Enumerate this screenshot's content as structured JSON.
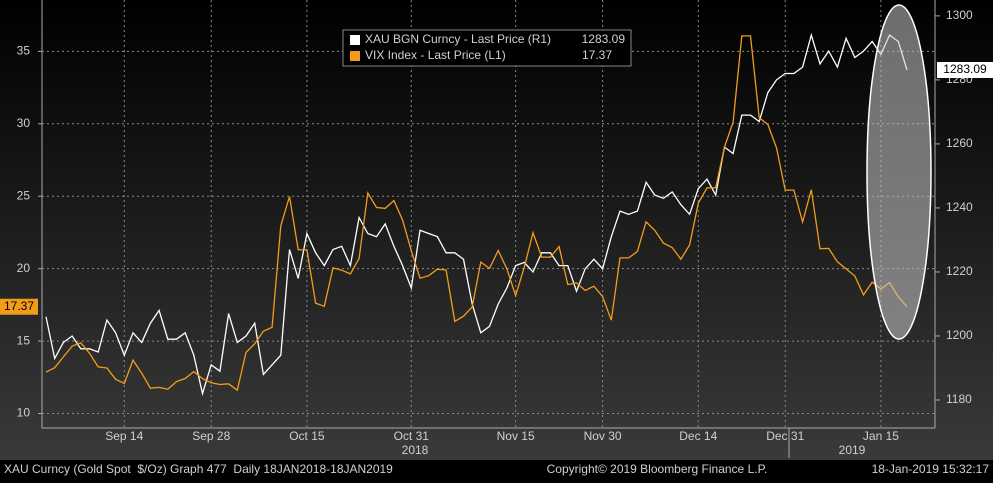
{
  "chart_data": {
    "type": "line",
    "categories": [
      null,
      null,
      null,
      null,
      null,
      null,
      null,
      null,
      null,
      "Sep 14",
      null,
      null,
      null,
      null,
      null,
      null,
      null,
      null,
      null,
      "Sep 28",
      null,
      null,
      null,
      null,
      null,
      null,
      null,
      null,
      null,
      null,
      "Oct 15",
      null,
      null,
      null,
      null,
      null,
      null,
      null,
      null,
      null,
      null,
      null,
      "Oct 31",
      null,
      null,
      null,
      null,
      null,
      null,
      null,
      null,
      null,
      null,
      null,
      "Nov 15",
      null,
      null,
      null,
      null,
      null,
      null,
      null,
      null,
      null,
      "Nov 30",
      null,
      null,
      null,
      null,
      null,
      null,
      null,
      null,
      null,
      null,
      "Dec 14",
      null,
      null,
      null,
      null,
      null,
      null,
      null,
      null,
      null,
      "Dec 31",
      null,
      null,
      null,
      null,
      null,
      null,
      null,
      null,
      null,
      null,
      "Jan 15",
      null,
      null,
      null
    ],
    "years": [
      "2018",
      "2019"
    ],
    "series": [
      {
        "name": "XAU BGN Curncy - Last Price (R1)",
        "color": "#ffffff",
        "axis": "y2",
        "values": [
          1206,
          1193,
          1198,
          1200,
          1196,
          1196,
          1195,
          1205,
          1201,
          1194,
          1201,
          1198,
          1204,
          1208,
          1199,
          1199,
          1201,
          1194,
          1182,
          1191,
          1189,
          1207,
          1198,
          1200,
          1204,
          1188,
          1191,
          1194,
          1227,
          1218,
          1232,
          1226,
          1222,
          1227,
          1228,
          1222,
          1237,
          1232,
          1231,
          1235,
          1228,
          1222,
          1215,
          1233,
          1232,
          1231,
          1226,
          1226,
          1224,
          1210,
          1201,
          1203,
          1210,
          1215,
          1222,
          1223,
          1220,
          1226,
          1226,
          1222,
          1222,
          1214,
          1221,
          1224,
          1221,
          1231,
          1239,
          1238,
          1239,
          1248,
          1244,
          1243,
          1245,
          1241,
          1238,
          1246,
          1249,
          1244,
          1259,
          1257,
          1269,
          1269,
          1267,
          1276,
          1280,
          1282,
          1282,
          1284,
          1294,
          1285,
          1289,
          1284,
          1293,
          1287,
          1289,
          1292,
          1288,
          1294,
          1292,
          1283.09
        ]
      },
      {
        "name": "VIX Index - Last Price (L1)",
        "color": "#f39c1a",
        "values": [
          12.86,
          13.16,
          13.91,
          14.65,
          14.88,
          14.16,
          13.22,
          13.14,
          12.37,
          12.07,
          13.68,
          12.79,
          11.75,
          11.8,
          11.68,
          12.2,
          12.42,
          12.89,
          12.41,
          12.12,
          12.0,
          12.05,
          11.61,
          14.22,
          14.82,
          15.69,
          15.95,
          22.96,
          24.98,
          21.31,
          21.3,
          17.62,
          17.4,
          20.06,
          19.89,
          19.64,
          20.71,
          25.23,
          24.22,
          24.16,
          24.7,
          23.35,
          21.23,
          19.34,
          19.51,
          19.96,
          19.91,
          16.36,
          16.72,
          17.36,
          20.45,
          20.02,
          21.25,
          19.98,
          18.14,
          20.1,
          22.48,
          20.8,
          20.8,
          21.52,
          18.9,
          19.02,
          18.49,
          18.79,
          18.07,
          16.44,
          20.74,
          20.74,
          21.19,
          23.23,
          22.64,
          21.76,
          21.46,
          20.65,
          21.63,
          24.52,
          25.58,
          25.58,
          28.38,
          30.11,
          36.07,
          36.07,
          30.41,
          29.96,
          28.34,
          25.42,
          25.42,
          23.22,
          25.45,
          21.38,
          21.4,
          20.47,
          19.98,
          19.5,
          18.19,
          19.07,
          18.6,
          19.04,
          18.06,
          17.37
        ]
      }
    ],
    "ylim": [
      9,
      38.2
    ],
    "yticks": [
      10,
      15,
      20,
      25,
      30,
      35
    ],
    "y2lim": [
      1171.25,
      1303.4
    ],
    "y2ticks": [
      1180,
      1200,
      1220,
      1240,
      1260,
      1280,
      1300
    ],
    "grid": true,
    "footer": {
      "left": "XAU Curncy (Gold Spot  $/Oz) Graph 477  Daily 18JAN2018-18JAN2019",
      "center": "Copyright© 2019 Bloomberg Finance L.P.",
      "right": "18-Jan-2019 15:32:17"
    }
  }
}
